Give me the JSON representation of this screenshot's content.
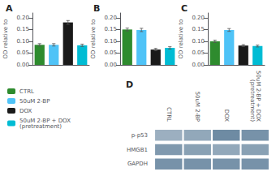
{
  "chart_data": [
    {
      "type": "bar",
      "title": "A",
      "ylabel": "OD relative to",
      "categories": [
        "CTRL",
        "50uM 2-BP",
        "DOX",
        "50uM 2-BP + DOX\n(pretreatment)"
      ],
      "values": [
        0.085,
        0.085,
        0.18,
        0.083
      ],
      "errors": [
        0.005,
        0.005,
        0.008,
        0.005
      ],
      "colors": [
        "#2e8b2e",
        "#4fc3f7",
        "#1a1a1a",
        "#00bcd4"
      ],
      "ylim": [
        0,
        0.22
      ],
      "yticks": [
        {
          "value": 0.0,
          "label": "0.00"
        },
        {
          "value": 0.05,
          "label": "0.05"
        },
        {
          "value": 0.1,
          "label": "0.10"
        },
        {
          "value": 0.15,
          "label": "0.15"
        },
        {
          "value": 0.2,
          "label": "0.20"
        }
      ],
      "tick_labels": "y",
      "grid": false,
      "legend": "left"
    },
    {
      "type": "bar",
      "title": "B",
      "ylabel": "OD relative to",
      "categories": [
        "CTRL",
        "50uM 2-BP",
        "DOX",
        "50uM 2-BP + DOX\n(pretreatment)"
      ],
      "values": [
        0.15,
        0.148,
        0.065,
        0.072
      ],
      "errors": [
        0.006,
        0.007,
        0.005,
        0.005
      ],
      "colors": [
        "#2e8b2e",
        "#4fc3f7",
        "#1a1a1a",
        "#00bcd4"
      ],
      "ylim": [
        0,
        0.22
      ],
      "yticks": [
        {
          "value": 0.0,
          "label": "0.00"
        },
        {
          "value": 0.05,
          "label": "0.05"
        },
        {
          "value": 0.1,
          "label": "0.10"
        },
        {
          "value": 0.15,
          "label": "0.15"
        },
        {
          "value": 0.2,
          "label": "0.20"
        }
      ],
      "tick_labels": "y",
      "grid": false,
      "legend": "left"
    },
    {
      "type": "bar",
      "title": "C",
      "ylabel": "OD relative to",
      "categories": [
        "CTRL",
        "50uM 2-BP",
        "DOX",
        "50uM 2-BP + DOX\n(pretreatment)"
      ],
      "values": [
        0.1,
        0.148,
        0.082,
        0.08
      ],
      "errors": [
        0.005,
        0.006,
        0.004,
        0.004
      ],
      "colors": [
        "#2e8b2e",
        "#4fc3f7",
        "#1a1a1a",
        "#00bcd4"
      ],
      "ylim": [
        0,
        0.22
      ],
      "yticks": [
        {
          "value": 0.0,
          "label": "0.00"
        },
        {
          "value": 0.05,
          "label": "0.05"
        },
        {
          "value": 0.1,
          "label": "0.10"
        },
        {
          "value": 0.15,
          "label": "0.15"
        },
        {
          "value": 0.2,
          "label": "0.20"
        }
      ],
      "tick_labels": "y",
      "grid": false,
      "legend": "left"
    },
    {
      "type": "heatmap",
      "title": "D",
      "x": [
        "CTRL",
        "50uM 2-BP",
        "DOX",
        "50uM 2-BP + DOX\n(pretreatment)"
      ],
      "y": [
        "p-p53",
        "HMGB1",
        "GAPDH"
      ],
      "cells": [
        [
          0.55,
          0.6,
          0.8,
          0.75
        ],
        [
          0.7,
          0.65,
          0.6,
          0.65
        ],
        [
          0.75,
          0.75,
          0.75,
          0.75
        ]
      ],
      "color": "#4a6e8c"
    }
  ]
}
